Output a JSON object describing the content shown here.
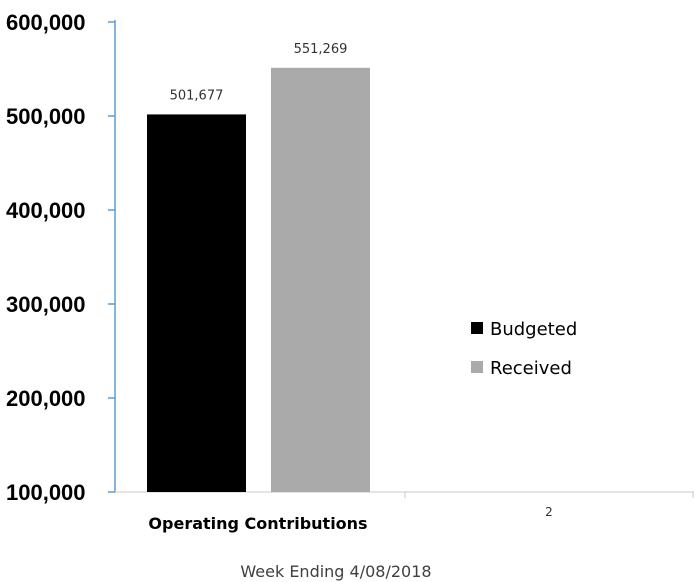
{
  "chart_data": {
    "type": "bar",
    "categories": [
      "Operating Contributions",
      "2"
    ],
    "series": [
      {
        "name": "Budgeted",
        "color": "#000000",
        "values": [
          501677,
          null
        ]
      },
      {
        "name": "Received",
        "color": "#aaaaaa",
        "values": [
          551269,
          null
        ]
      }
    ],
    "data_labels": [
      "501,677",
      "551,269"
    ],
    "xlabel": "Week Ending 4/08/2018",
    "ylabel": "",
    "ylim": [
      100000,
      600000
    ],
    "yticks": [
      "100,000",
      "200,000",
      "300,000",
      "400,000",
      "500,000",
      "600,000"
    ],
    "legend_position": "right",
    "grid": false,
    "axis_color": "#5b9bd5"
  }
}
